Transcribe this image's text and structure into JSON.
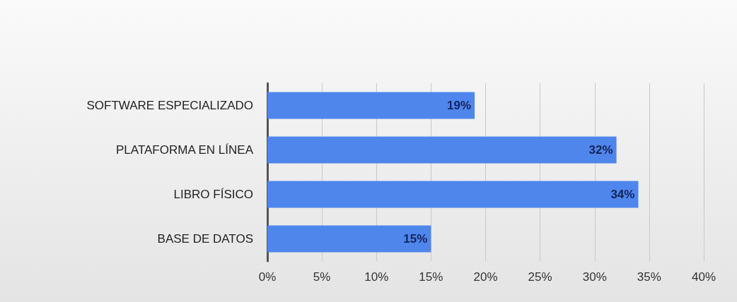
{
  "chart_data": {
    "type": "bar",
    "orientation": "horizontal",
    "categories": [
      "SOFTWARE ESPECIALIZADO",
      "PLATAFORMA EN LÍNEA",
      "LIBRO FÍSICO",
      "BASE DE DATOS"
    ],
    "values": [
      19,
      32,
      34,
      15
    ],
    "value_labels": [
      "19%",
      "32%",
      "34%",
      "15%"
    ],
    "color": "#4f86ec",
    "xlim": [
      0,
      40
    ],
    "xticks": [
      {
        "value": 0,
        "label": "0%"
      },
      {
        "value": 5,
        "label": "5%"
      },
      {
        "value": 10,
        "label": "10%"
      },
      {
        "value": 15,
        "label": "15%"
      },
      {
        "value": 20,
        "label": "20%"
      },
      {
        "value": 25,
        "label": "25%"
      },
      {
        "value": 30,
        "label": "30%"
      },
      {
        "value": 35,
        "label": "35%"
      },
      {
        "value": 40,
        "label": "40%"
      }
    ],
    "grid": "x"
  }
}
